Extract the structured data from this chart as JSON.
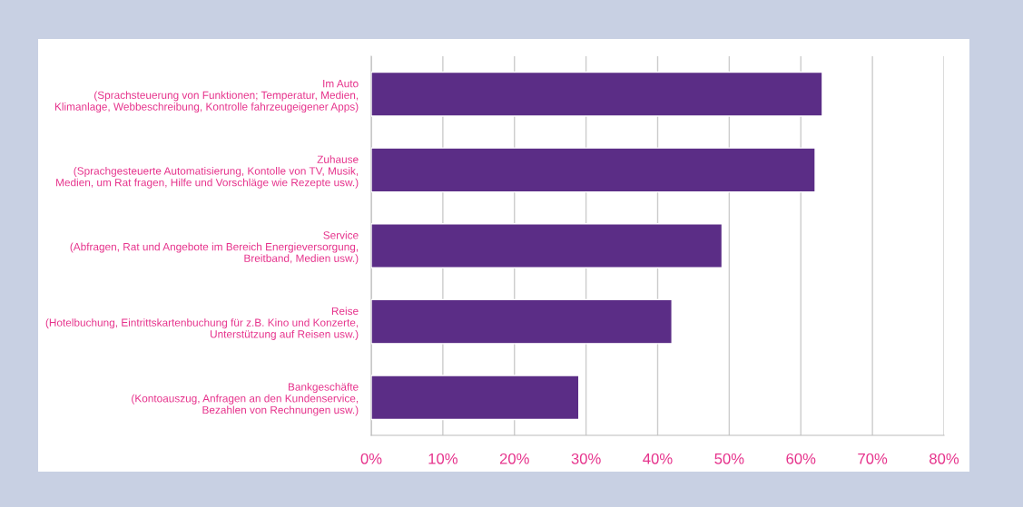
{
  "chart_data": {
    "type": "bar",
    "orientation": "horizontal",
    "categories": [
      "Im Auto\n(Sprachsteuerung von Funktionen; Temperatur, Medien,\nKlimanlage, Webbeschreibung, Kontrolle fahrzeugeigener Apps)",
      "Zuhause\n(Sprachgesteuerte Automatisierung, Kontolle von TV, Musik,\nMedien, um Rat fragen, Hilfe und Vorschläge wie Rezepte usw.)",
      "Service\n(Abfragen, Rat und Angebote im Bereich Energieversorgung,\nBreitband, Medien usw.)",
      "Reise\n(Hotelbuchung, Eintrittskartenbuchung für z.B. Kino und Konzerte,\nUnterstützung auf Reisen usw.)",
      "Bankgeschäfte\n(Kontoauszug, Anfragen an den Kundenservice,\nBezahlen von Rechnungen usw.)"
    ],
    "values": [
      63,
      62,
      49,
      42,
      29
    ],
    "color": "#5b2d86",
    "xlim": [
      0,
      80
    ],
    "xticks": [
      {
        "value": 0,
        "label": "0%"
      },
      {
        "value": 10,
        "label": "10%"
      },
      {
        "value": 20,
        "label": "20%"
      },
      {
        "value": 30,
        "label": "30%"
      },
      {
        "value": 40,
        "label": "40%"
      },
      {
        "value": 50,
        "label": "50%"
      },
      {
        "value": 60,
        "label": "60%"
      },
      {
        "value": 70,
        "label": "70%"
      },
      {
        "value": 80,
        "label": "80%"
      }
    ],
    "grid": "x"
  }
}
